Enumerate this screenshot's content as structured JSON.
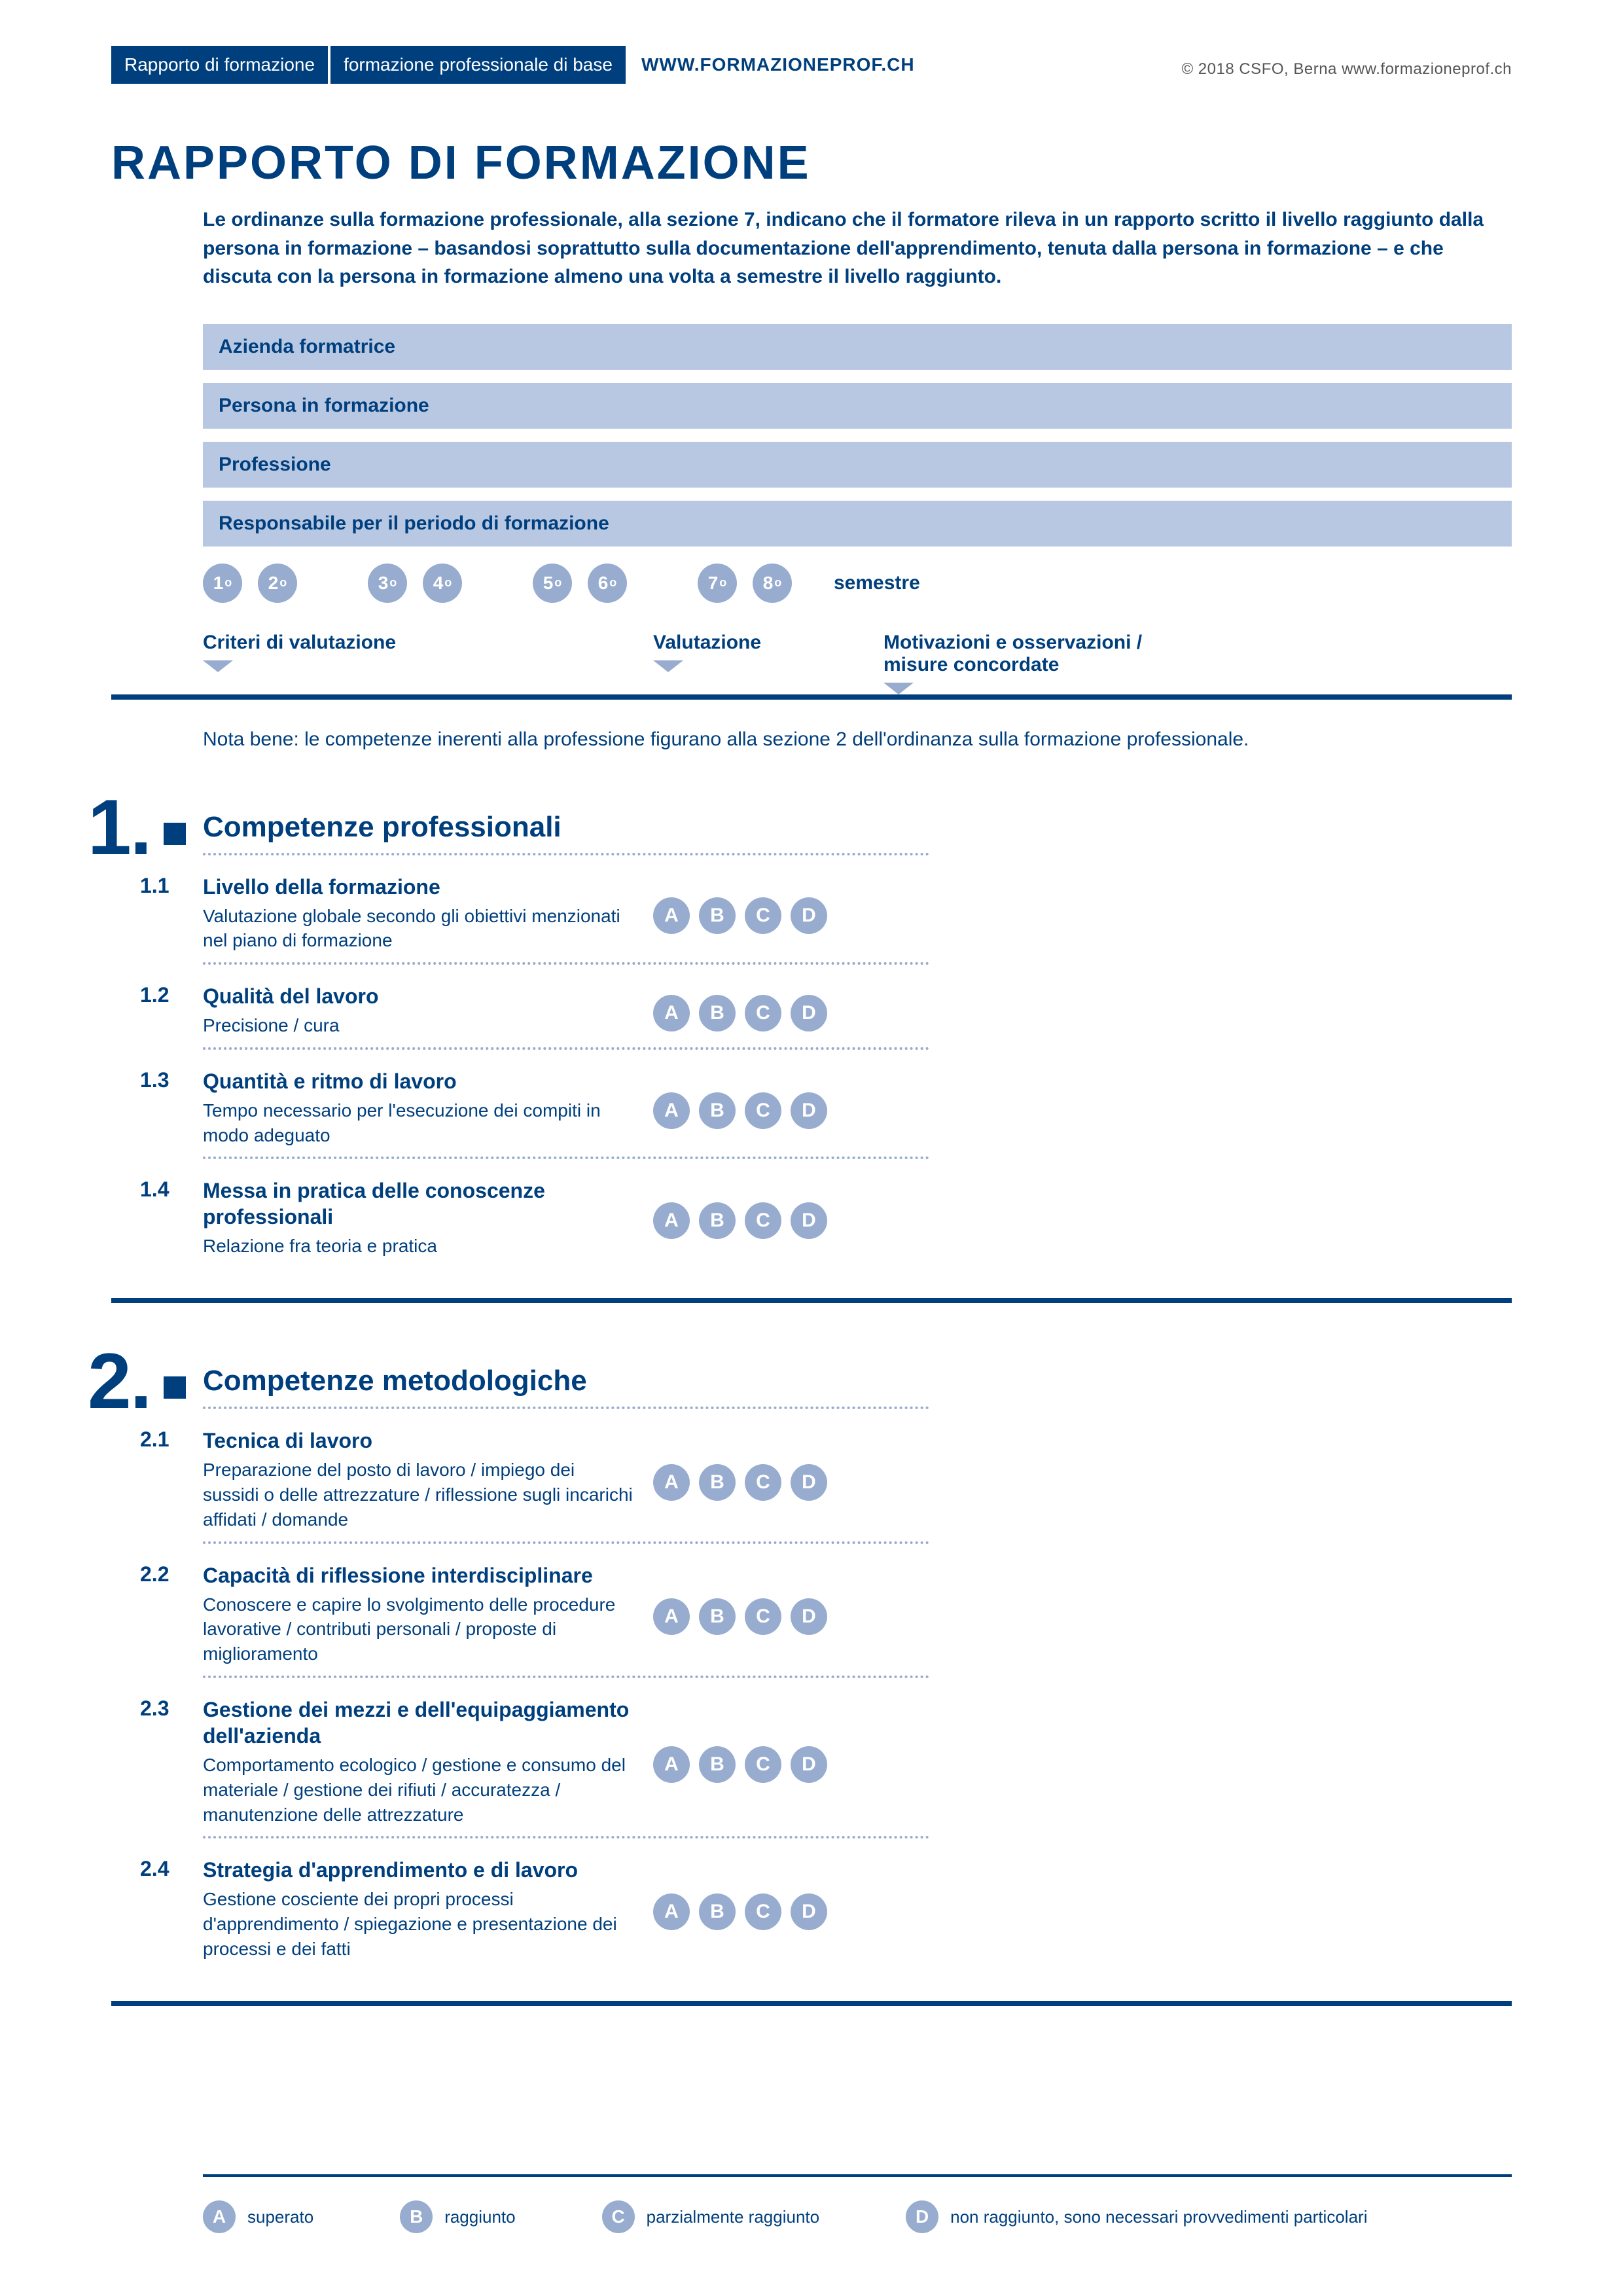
{
  "colors": {
    "brand": "#003f7d",
    "field_bg": "#b9c8e2",
    "soft": "#98accf",
    "text_grey": "#555555",
    "white": "#ffffff"
  },
  "header": {
    "parts": [
      "Rapporto di formazione",
      "formazione professionale di base",
      "WWW.FORMAZIONEPROF.CH"
    ],
    "copyright": "© 2018 CSFO, Berna   www.formazioneprof.ch"
  },
  "title": "RAPPORTO DI FORMAZIONE",
  "intro": "Le ordinanze sulla formazione professionale, alla sezione 7, indicano che il formatore rileva in un rapporto scritto il livello raggiunto dalla persona in formazione – basandosi soprattutto sulla documentazione dell'apprendimento, tenuta dalla persona in formazione – e che discuta con la persona in formazione almeno una volta a semestre il livello raggiunto.",
  "fields": [
    "Azienda formatrice",
    "Persona in formazione",
    "Professione",
    "Responsabile per il periodo di formazione"
  ],
  "semesters": [
    "1°",
    "2°",
    "3°",
    "4°",
    "5°",
    "6°",
    "7°",
    "8°"
  ],
  "semester_label": "semestre",
  "col_heads": [
    "Criteri di valutazione",
    "Valutazione",
    "Motivazioni e osservazioni /\nmisure concordate"
  ],
  "col_heads_x": [
    0,
    688,
    1040
  ],
  "col_heads_w": [
    688,
    352,
    560
  ],
  "note": "Nota bene: le competenze inerenti alla professione figurano alla sezione 2 dell'ordinanza sulla formazione professionale.",
  "ratings": [
    "A",
    "B",
    "C",
    "D"
  ],
  "sections": [
    {
      "num": "1.",
      "title": "Competenze professionali",
      "items": [
        {
          "n": "1.1",
          "t": "Livello della formazione",
          "d": "Valutazione globale secondo gli obiettivi menzionati nel piano di formazione"
        },
        {
          "n": "1.2",
          "t": "Qualità del lavoro",
          "d": "Precisione / cura"
        },
        {
          "n": "1.3",
          "t": "Quantità e ritmo di lavoro",
          "d": "Tempo necessario per l'esecuzione dei compiti in modo adeguato"
        },
        {
          "n": "1.4",
          "t": "Messa in pratica delle conoscenze professionali",
          "d": "Relazione fra teoria e pratica"
        }
      ]
    },
    {
      "num": "2.",
      "title": "Competenze metodologiche",
      "items": [
        {
          "n": "2.1",
          "t": "Tecnica di lavoro",
          "d": "Preparazione del posto di lavoro / impiego dei sussidi o delle attrezzature / riflessione sugli incarichi affidati / domande"
        },
        {
          "n": "2.2",
          "t": "Capacità di riflessione interdisciplinare",
          "d": "Conoscere e capire lo svolgimento delle procedure lavorative / contributi personali / proposte di miglioramento"
        },
        {
          "n": "2.3",
          "t": "Gestione dei mezzi e dell'equipaggiamento dell'azienda",
          "d": "Comportamento ecologico / gestione e consumo del materiale / gestione dei rifiuti / accuratezza / manutenzione delle attrezzature"
        },
        {
          "n": "2.4",
          "t": "Strategia d'apprendimento e di lavoro",
          "d": "Gestione cosciente dei propri processi d'apprendimento / spiegazione e presentazione dei processi e dei fatti"
        }
      ]
    }
  ],
  "legend": [
    {
      "k": "A",
      "v": "superato"
    },
    {
      "k": "B",
      "v": "raggiunto"
    },
    {
      "k": "C",
      "v": "parzialmente raggiunto"
    },
    {
      "k": "D",
      "v": "non raggiunto, sono necessari provvedimenti particolari"
    }
  ]
}
